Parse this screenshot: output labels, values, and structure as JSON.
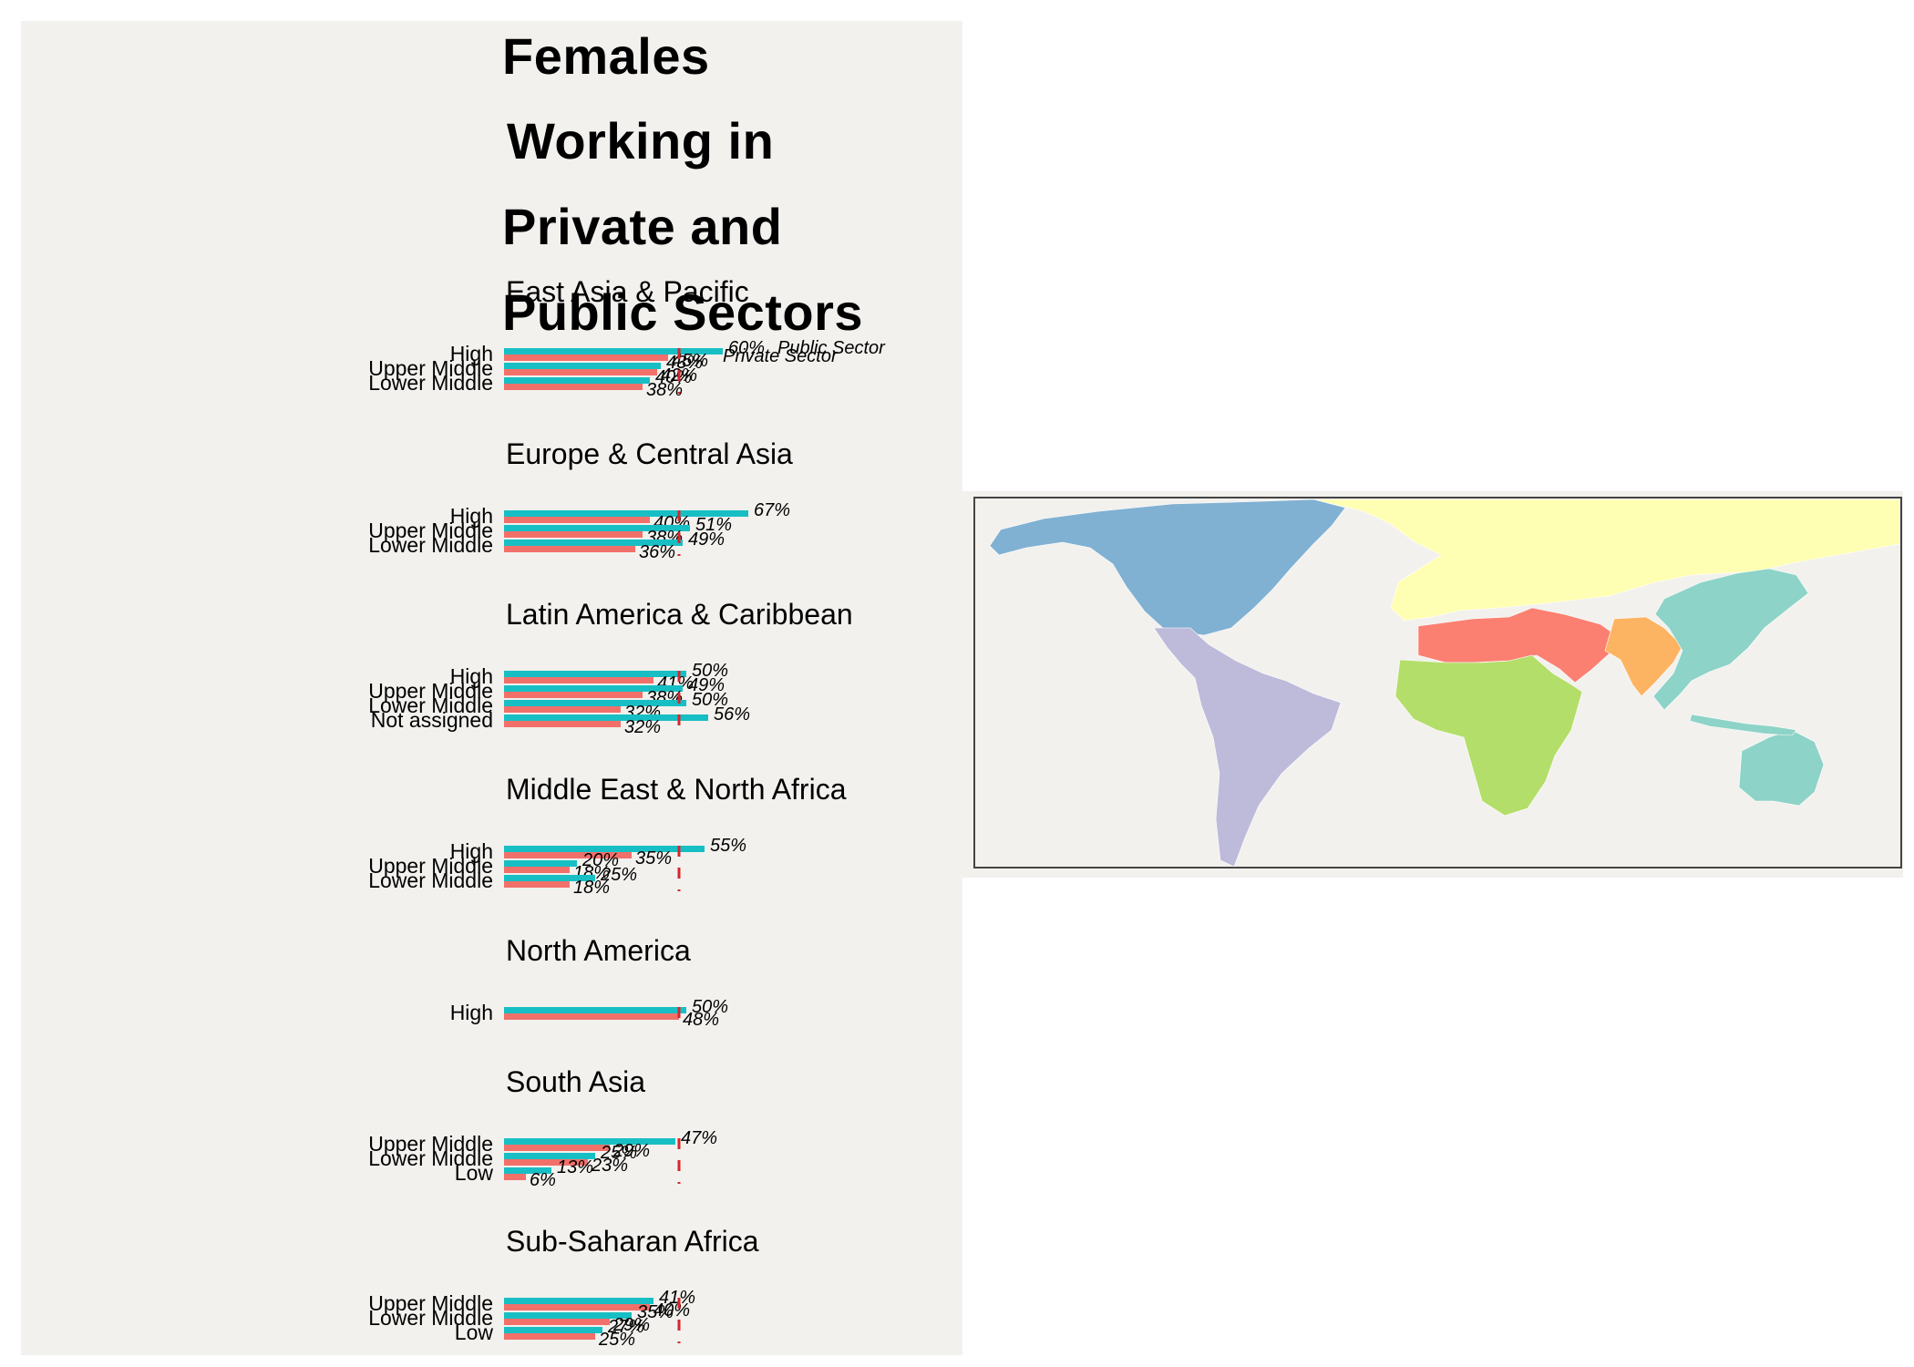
{
  "title_lines": [
    "Females",
    "Working in",
    "Private and",
    "Public Sectors"
  ],
  "legend": {
    "public": "Public Sector",
    "private": "Private Sector"
  },
  "colors": {
    "public": "#17bfc4",
    "private": "#f2706a",
    "reference": "#d7262c",
    "map_north_america": "#80b1d3",
    "map_latin_america": "#bebada",
    "map_europe_central_asia": "#ffffb3",
    "map_mena": "#fb8072",
    "map_sub_saharan": "#b3de69",
    "map_south_asia": "#fdb462",
    "map_east_asia": "#8dd3c7"
  },
  "chart_data": {
    "type": "bar",
    "orientation": "horizontal",
    "value_unit": "%",
    "value_range": [
      0,
      100
    ],
    "reference_line": 48,
    "series_names": [
      "Public Sector",
      "Private Sector"
    ],
    "panels": [
      {
        "region": "East Asia & Pacific",
        "map_color": "#8dd3c7",
        "rows": [
          {
            "label": "High",
            "public": 60,
            "private": 45
          },
          {
            "label": "Upper Middle",
            "public": 43,
            "private": 42
          },
          {
            "label": "Lower Middle",
            "public": 40,
            "private": 38
          }
        ]
      },
      {
        "region": "Europe & Central Asia",
        "map_color": "#ffffb3",
        "rows": [
          {
            "label": "High",
            "public": 67,
            "private": 40
          },
          {
            "label": "Upper Middle",
            "public": 51,
            "private": 38
          },
          {
            "label": "Lower Middle",
            "public": 49,
            "private": 36
          }
        ]
      },
      {
        "region": "Latin America & Caribbean",
        "map_color": "#bebada",
        "rows": [
          {
            "label": "High",
            "public": 50,
            "private": 41
          },
          {
            "label": "Upper Middle",
            "public": 49,
            "private": 38
          },
          {
            "label": "Lower Middle",
            "public": 50,
            "private": 32
          },
          {
            "label": "Not assigned",
            "public": 56,
            "private": 32
          }
        ]
      },
      {
        "region": "Middle East & North Africa",
        "map_color": "#fb8072",
        "rows": [
          {
            "label": "High",
            "public": 55,
            "private": 35
          },
          {
            "label": "Upper Middle",
            "public": 20,
            "private": 18
          },
          {
            "label": "Lower Middle",
            "public": 25,
            "private": 18
          }
        ]
      },
      {
        "region": "North America",
        "map_color": "#80b1d3",
        "rows": [
          {
            "label": "High",
            "public": 50,
            "private": 48
          }
        ]
      },
      {
        "region": "South Asia",
        "map_color": "#fdb462",
        "rows": [
          {
            "label": "Upper Middle",
            "public": 47,
            "private": 29
          },
          {
            "label": "Lower Middle",
            "public": 25,
            "private": 23
          },
          {
            "label": "Low",
            "public": 13,
            "private": 6
          }
        ]
      },
      {
        "region": "Sub-Saharan Africa",
        "map_color": "#b3de69",
        "rows": [
          {
            "label": "Upper Middle",
            "public": 41,
            "private": 40
          },
          {
            "label": "Lower Middle",
            "public": 35,
            "private": 29
          },
          {
            "label": "Low",
            "public": 27,
            "private": 25
          }
        ]
      }
    ]
  }
}
